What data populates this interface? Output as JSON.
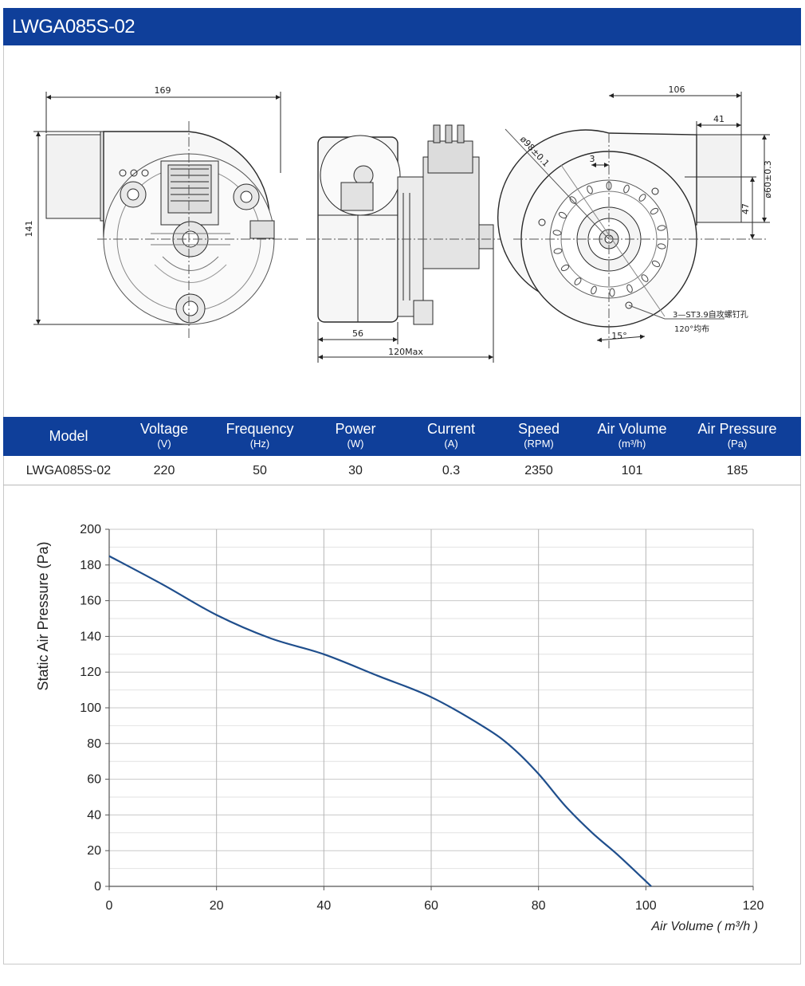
{
  "title": "LWGA085S-02",
  "drawing": {
    "front": {
      "width_dim": "169",
      "height_dim": "141"
    },
    "side": {
      "depth_dim": "56",
      "max_dim": "120Max"
    },
    "back": {
      "width_dim": "106",
      "outlet_dim": "41",
      "hole_dim": "3",
      "diameter_dim": "ø98±0.1",
      "bore_dim": "ø60±0.3",
      "offset_dim": "47",
      "screw_note": "3—ST3.9自攻螺钉孔",
      "angle_note": "120°均布",
      "angle_dim": "15°"
    }
  },
  "spec_table": {
    "headers": [
      {
        "label": "Model",
        "unit": ""
      },
      {
        "label": "Voltage",
        "unit": "(V)"
      },
      {
        "label": "Frequency",
        "unit": "(Hz)"
      },
      {
        "label": "Power",
        "unit": "(W)"
      },
      {
        "label": "Current",
        "unit": "(A)"
      },
      {
        "label": "Speed",
        "unit": "(RPM)"
      },
      {
        "label": "Air Volume",
        "unit": "(m³/h)"
      },
      {
        "label": "Air Pressure",
        "unit": "(Pa)"
      }
    ],
    "row": [
      "LWGA085S-02",
      "220",
      "50",
      "30",
      "0.3",
      "2350",
      "101",
      "185"
    ]
  },
  "chart_data": {
    "type": "line",
    "xlabel": "Air Volume ( m³/h )",
    "ylabel": "Static Air Pressure  (Pa)",
    "xlim": [
      0,
      120
    ],
    "ylim": [
      0,
      200
    ],
    "x_ticks": [
      0,
      20,
      40,
      60,
      80,
      100,
      120
    ],
    "y_ticks": [
      0,
      20,
      40,
      60,
      80,
      100,
      120,
      140,
      160,
      180,
      200
    ],
    "grid": true,
    "color": "#1f4e8c",
    "series": [
      {
        "x": [
          0,
          10,
          20,
          30,
          40,
          50,
          60,
          70,
          75,
          80,
          85,
          90,
          95,
          101
        ],
        "y": [
          185,
          169,
          152,
          139,
          130,
          118,
          106,
          89,
          78,
          63,
          45,
          30,
          17,
          0
        ]
      }
    ]
  }
}
